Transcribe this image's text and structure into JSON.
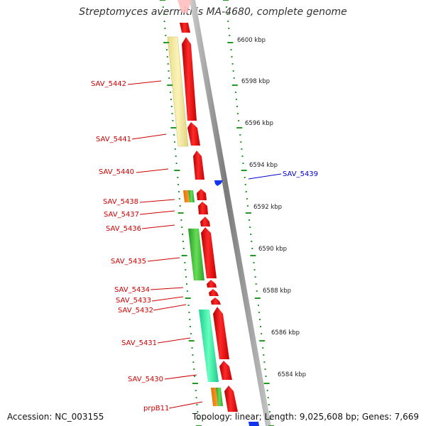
{
  "title": "Streptomyces avermitilis MA-4680, complete genome",
  "footer": {
    "accession": "Accession: NC_003155",
    "summary": "Topology: linear; Length: 9,025,608 bp; Genes: 7,669"
  },
  "scale_labels": [
    "6600 kbp",
    "6598 kbp",
    "6596 kbp",
    "6594 kbp",
    "6592 kbp",
    "6590 kbp",
    "6588 kbp",
    "6586 kbp",
    "6584 kbp"
  ],
  "gene_labels": {
    "left": [
      "SAV_5442",
      "SAV_5441",
      "SAV_5440",
      "SAV_5438",
      "SAV_5437",
      "SAV_5436",
      "SAV_5435",
      "SAV_5434",
      "SAV_5433",
      "SAV_5432",
      "SAV_5431",
      "SAV_5430",
      "prpB11"
    ],
    "right": [
      "SAV_5439"
    ]
  },
  "colors": {
    "forward_gene": "#ee1111",
    "reverse_gene": "#1133ee",
    "backbone": "#8a8a8a",
    "tick": "#229922",
    "label_left": "#cc0000",
    "label_right": "#0000cc"
  }
}
